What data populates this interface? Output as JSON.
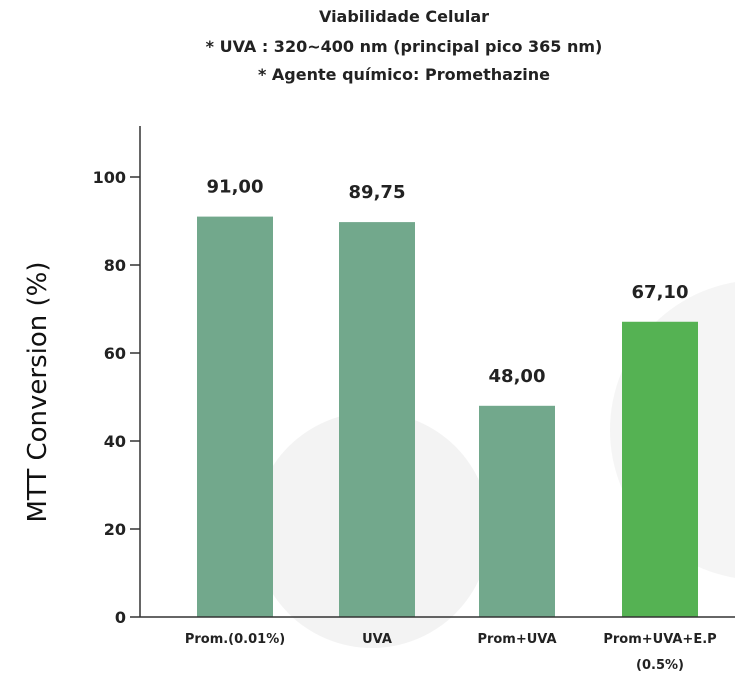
{
  "chart_data": {
    "type": "bar",
    "title_lines": [
      "Viabilidade Celular",
      "* UVA : 320~400 nm (principal pico 365 nm)",
      "* Agente químico: Promethazine"
    ],
    "ylabel": "MTT Conversion (%)",
    "xlabel": "",
    "ylim": [
      0,
      110
    ],
    "yticks": [
      "0",
      "20",
      "40",
      "60",
      "80",
      "100"
    ],
    "categories": [
      {
        "lines": [
          "Prom.(0.01%)"
        ]
      },
      {
        "lines": [
          "UVA"
        ]
      },
      {
        "lines": [
          "Prom+UVA"
        ]
      },
      {
        "lines": [
          "Prom+UVA+E.P",
          "(0.5%)"
        ]
      }
    ],
    "values": [
      91.0,
      89.75,
      48.0,
      67.1
    ],
    "value_labels": [
      "91,00",
      "89,75",
      "48,00",
      "67,10"
    ],
    "bar_colors": [
      "#6aa386",
      "#6aa386",
      "#6aa386",
      "#4cae4a"
    ],
    "grid": false,
    "legend": "none"
  }
}
